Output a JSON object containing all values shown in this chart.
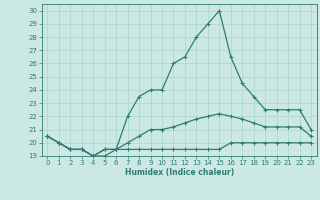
{
  "xlabel": "Humidex (Indice chaleur)",
  "ylabel": "",
  "x": [
    0,
    1,
    2,
    3,
    4,
    5,
    6,
    7,
    8,
    9,
    10,
    11,
    12,
    13,
    14,
    15,
    16,
    17,
    18,
    19,
    20,
    21,
    22,
    23
  ],
  "line1": [
    20.5,
    20.0,
    19.5,
    19.5,
    19.0,
    19.0,
    19.5,
    19.5,
    19.5,
    19.5,
    19.5,
    19.5,
    19.5,
    19.5,
    19.5,
    19.5,
    20.0,
    20.0,
    20.0,
    20.0,
    20.0,
    20.0,
    20.0,
    20.0
  ],
  "line2": [
    20.5,
    20.0,
    19.5,
    19.5,
    19.0,
    19.5,
    19.5,
    20.0,
    20.5,
    21.0,
    21.0,
    21.2,
    21.5,
    21.8,
    22.0,
    22.2,
    22.0,
    21.8,
    21.5,
    21.2,
    21.2,
    21.2,
    21.2,
    20.5
  ],
  "line3": [
    20.5,
    20.0,
    19.5,
    19.5,
    19.0,
    19.5,
    19.5,
    22.0,
    23.5,
    24.0,
    24.0,
    26.0,
    26.5,
    28.0,
    29.0,
    30.0,
    26.5,
    24.5,
    23.5,
    22.5,
    22.5,
    22.5,
    22.5,
    21.0
  ],
  "line_color": "#2e7d6e",
  "bg_color": "#cce8e5",
  "grid_color": "#aad4d0",
  "xlim": [
    -0.5,
    23.5
  ],
  "ylim": [
    19,
    30.5
  ],
  "yticks": [
    19,
    20,
    21,
    22,
    23,
    24,
    25,
    26,
    27,
    28,
    29,
    30
  ],
  "xticks": [
    0,
    1,
    2,
    3,
    4,
    5,
    6,
    7,
    8,
    9,
    10,
    11,
    12,
    13,
    14,
    15,
    16,
    17,
    18,
    19,
    20,
    21,
    22,
    23
  ],
  "marker": "+",
  "markersize": 3,
  "linewidth": 0.9,
  "tick_fontsize": 5,
  "xlabel_fontsize": 5.5
}
